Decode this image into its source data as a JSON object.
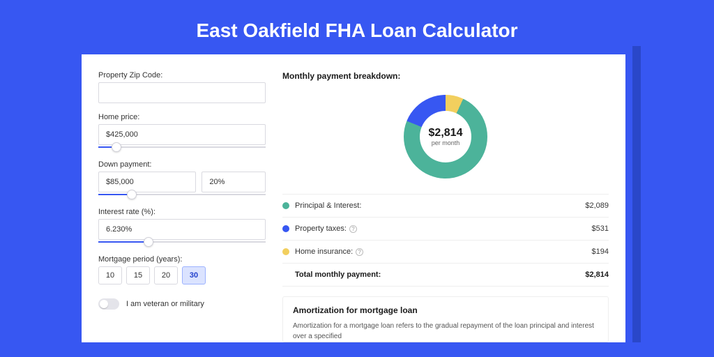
{
  "page": {
    "title": "East Oakfield FHA Loan Calculator"
  },
  "colors": {
    "page_bg": "#3757f2",
    "accent": "#3757f2",
    "pi": "#4cb39a",
    "tax": "#3757f2",
    "ins": "#f2cf5e"
  },
  "form": {
    "zip": {
      "label": "Property Zip Code:",
      "value": ""
    },
    "price": {
      "label": "Home price:",
      "value": "$425,000",
      "slider_pct": 11
    },
    "down": {
      "label": "Down payment:",
      "amount": "$85,000",
      "pct": "20%",
      "slider_pct": 20
    },
    "rate": {
      "label": "Interest rate (%):",
      "value": "6.230%",
      "slider_pct": 30
    },
    "period": {
      "label": "Mortgage period (years):",
      "options": [
        "10",
        "15",
        "20",
        "30"
      ],
      "active_index": 3
    },
    "veteran_label": "I am veteran or military"
  },
  "breakdown": {
    "title": "Monthly payment breakdown:",
    "center_amount": "$2,814",
    "center_sub": "per month",
    "donut_gradient": "conic-gradient(#f2cf5e 0deg 25deg, #4cb39a 25deg 292deg, #3757f2 292deg 360deg)",
    "rows": [
      {
        "label": "Principal & Interest:",
        "amount": "$2,089",
        "color": "#4cb39a",
        "info": false
      },
      {
        "label": "Property taxes:",
        "amount": "$531",
        "color": "#3757f2",
        "info": true
      },
      {
        "label": "Home insurance:",
        "amount": "$194",
        "color": "#f2cf5e",
        "info": true
      }
    ],
    "total_label": "Total monthly payment:",
    "total_amount": "$2,814"
  },
  "amortization": {
    "title": "Amortization for mortgage loan",
    "body": "Amortization for a mortgage loan refers to the gradual repayment of the loan principal and interest over a specified"
  }
}
